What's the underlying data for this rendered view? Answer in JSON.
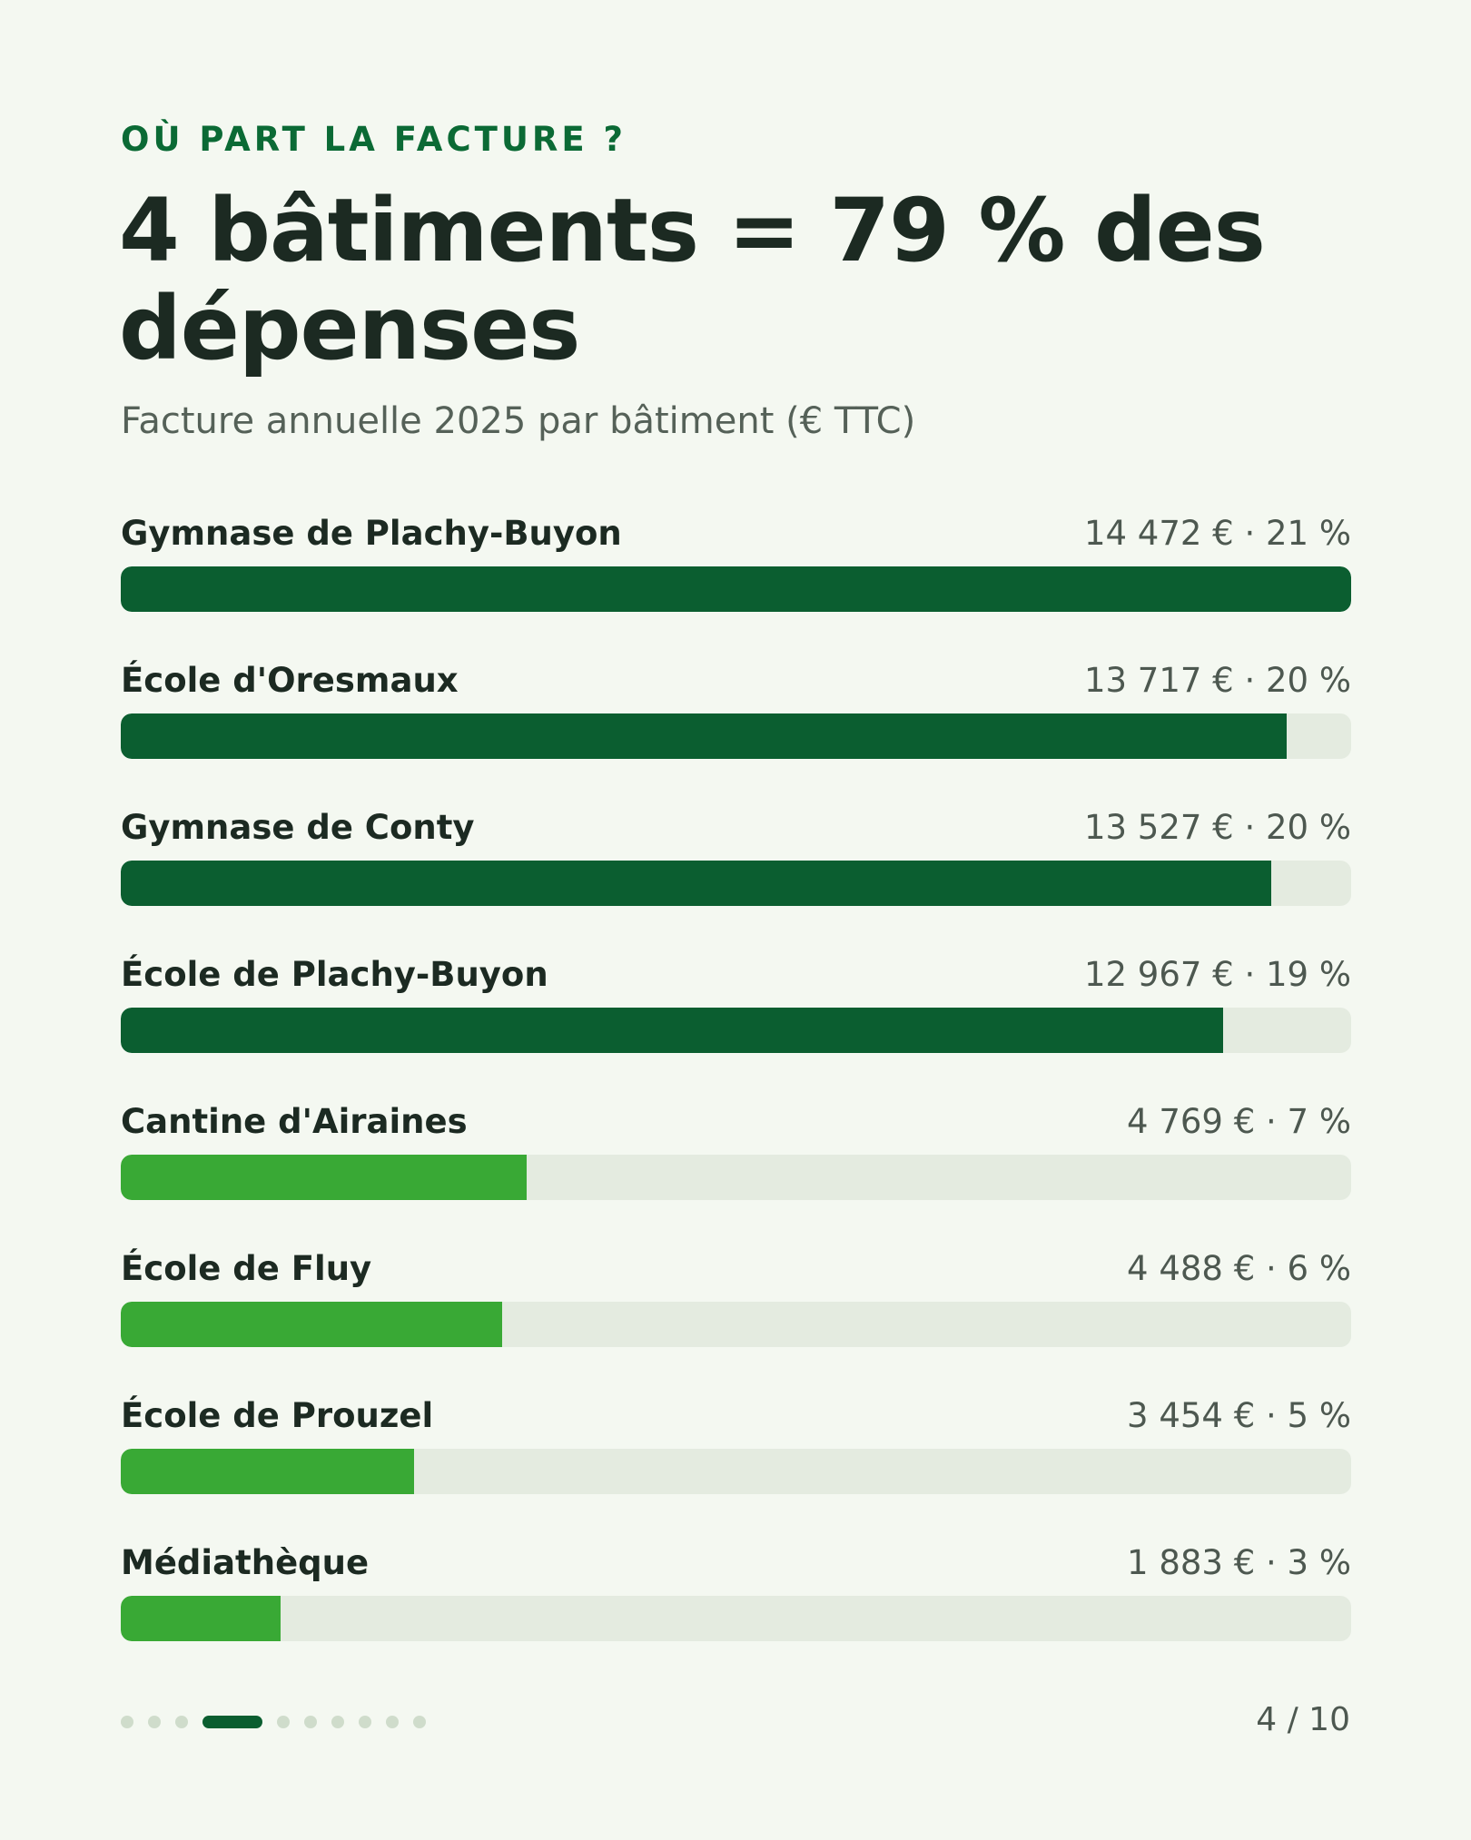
{
  "header": {
    "eyebrow": "OÙ PART LA FACTURE ?",
    "title": "4 bâtiments = 79 % des dépenses",
    "subtitle": "Facture annuelle 2025 par bâtiment (€ TTC)"
  },
  "colors": {
    "top4": "#0b5e30",
    "others": "#39a935",
    "track": "#e4ebe0",
    "background": "#f4f8f1"
  },
  "chart_data": {
    "type": "bar",
    "orientation": "horizontal",
    "title": "4 bâtiments = 79 % des dépenses",
    "subtitle": "Facture annuelle 2025 par bâtiment (€ TTC)",
    "categories": [
      "Gymnase de Plachy-Buyon",
      "École d'Oresmaux",
      "Gymnase de Conty",
      "École de Plachy-Buyon",
      "Cantine d'Airaines",
      "École de Fluy",
      "École de Prouzel",
      "Médiathèque"
    ],
    "values": [
      14472,
      13717,
      13527,
      12967,
      4769,
      4488,
      3454,
      1883
    ],
    "value_labels": [
      "14 472 € · 21 %",
      "13 717 € · 20 %",
      "13 527 € · 20 %",
      "12 967 € · 19 %",
      "4 769 € · 7 %",
      "4 488 € · 6 %",
      "3 454 € · 5 %",
      "1 883 € · 3 %"
    ],
    "highlight": [
      true,
      true,
      true,
      true,
      false,
      false,
      false,
      false
    ],
    "xlim": [
      0,
      14472
    ]
  },
  "pagination": {
    "total": 10,
    "current": 4,
    "label": "4 / 10"
  }
}
